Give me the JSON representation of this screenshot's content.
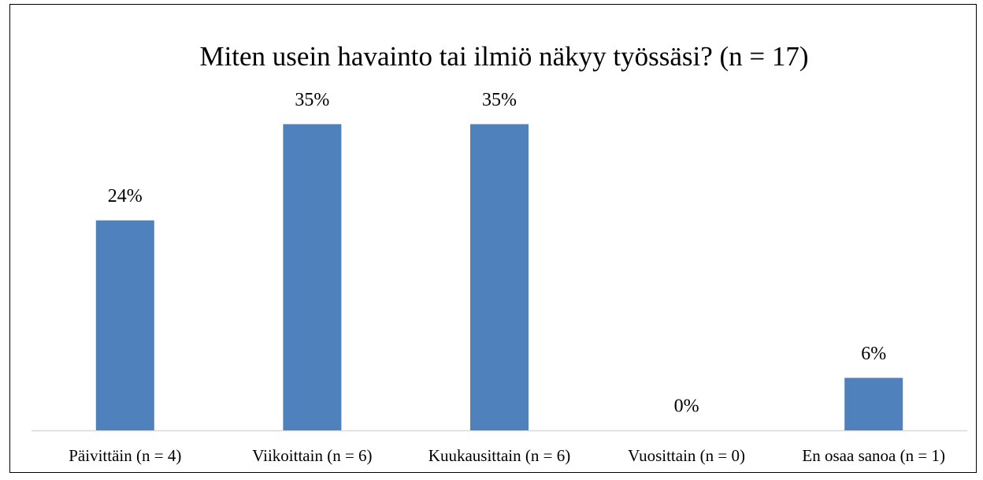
{
  "chart_data": {
    "type": "bar",
    "title": "Miten usein havainto tai ilmiö näkyy työssäsi? (n = 17)",
    "categories": [
      "Päivittäin (n = 4)",
      "Viikoittain (n = 6)",
      "Kuukausittain (n = 6)",
      "Vuosittain (n = 0)",
      "En osaa sanoa (n = 1)"
    ],
    "values": [
      24,
      35,
      35,
      0,
      6
    ],
    "value_labels": [
      "24%",
      "35%",
      "35%",
      "0%",
      "6%"
    ],
    "color": "#4f81bd"
  }
}
